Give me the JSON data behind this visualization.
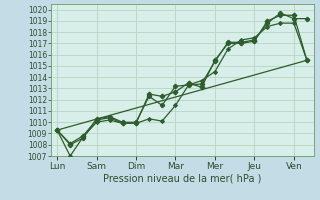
{
  "background_color": "#c4dce6",
  "plot_bg_color": "#d8eee8",
  "grid_color": "#b8d4c4",
  "line_color": "#2d5c2d",
  "marker_color": "#2d5c2d",
  "xlabel_text": "Pression niveau de la mer( hPa )",
  "ylim": [
    1007,
    1020.5
  ],
  "yticks": [
    1007,
    1008,
    1009,
    1010,
    1011,
    1012,
    1013,
    1014,
    1015,
    1016,
    1017,
    1018,
    1019,
    1020
  ],
  "xtick_labels": [
    "Lun",
    "Sam",
    "Dim",
    "Mar",
    "Mer",
    "Jeu",
    "Ven"
  ],
  "xtick_positions": [
    0,
    1,
    2,
    3,
    4,
    5,
    6
  ],
  "xlim": [
    -0.15,
    6.5
  ],
  "series": [
    {
      "x": [
        0,
        0.33,
        0.66,
        1.0,
        1.33,
        1.66,
        2.0,
        2.33,
        2.66,
        3.0,
        3.33,
        3.66,
        4.0,
        4.33,
        4.66,
        5.0,
        5.33,
        5.66,
        6.0,
        6.33
      ],
      "y": [
        1009.3,
        1008.1,
        1008.8,
        1010.2,
        1010.4,
        1009.9,
        1009.9,
        1012.5,
        1012.3,
        1012.7,
        1013.5,
        1013.1,
        1015.5,
        1017.0,
        1017.0,
        1017.2,
        1019.0,
        1019.5,
        1019.5,
        1015.5
      ],
      "marker": "D",
      "markersize": 2.5,
      "linewidth": 0.9
    },
    {
      "x": [
        0,
        0.33,
        0.66,
        1.0,
        1.33,
        1.66,
        2.0,
        2.33,
        2.66,
        3.0,
        3.33,
        3.66,
        4.0,
        4.33,
        4.66,
        5.0,
        5.33,
        5.66,
        6.0,
        6.33
      ],
      "y": [
        1009.3,
        1008.0,
        1008.6,
        1010.3,
        1010.5,
        1010.0,
        1010.0,
        1012.3,
        1011.5,
        1013.2,
        1013.3,
        1013.4,
        1015.4,
        1017.1,
        1017.1,
        1017.3,
        1018.8,
        1019.7,
        1019.2,
        1019.2
      ],
      "marker": "P",
      "markersize": 3,
      "linewidth": 0.9
    },
    {
      "x": [
        0,
        0.33,
        0.66,
        1.0,
        1.33,
        1.66,
        2.0,
        2.33,
        2.66,
        3.0,
        3.33,
        3.66,
        4.0,
        4.33,
        4.66,
        5.0,
        5.33,
        5.66,
        6.0,
        6.33
      ],
      "y": [
        1009.3,
        1007.0,
        1008.7,
        1010.0,
        1010.2,
        1009.9,
        1009.9,
        1010.3,
        1010.1,
        1011.5,
        1013.3,
        1013.7,
        1014.5,
        1016.5,
        1017.3,
        1017.5,
        1018.5,
        1018.8,
        1018.8,
        1015.5
      ],
      "marker": "D",
      "markersize": 2.0,
      "linewidth": 0.9
    },
    {
      "x": [
        0,
        6.33
      ],
      "y": [
        1009.3,
        1015.5
      ],
      "marker": null,
      "markersize": 0,
      "linewidth": 0.9
    }
  ]
}
